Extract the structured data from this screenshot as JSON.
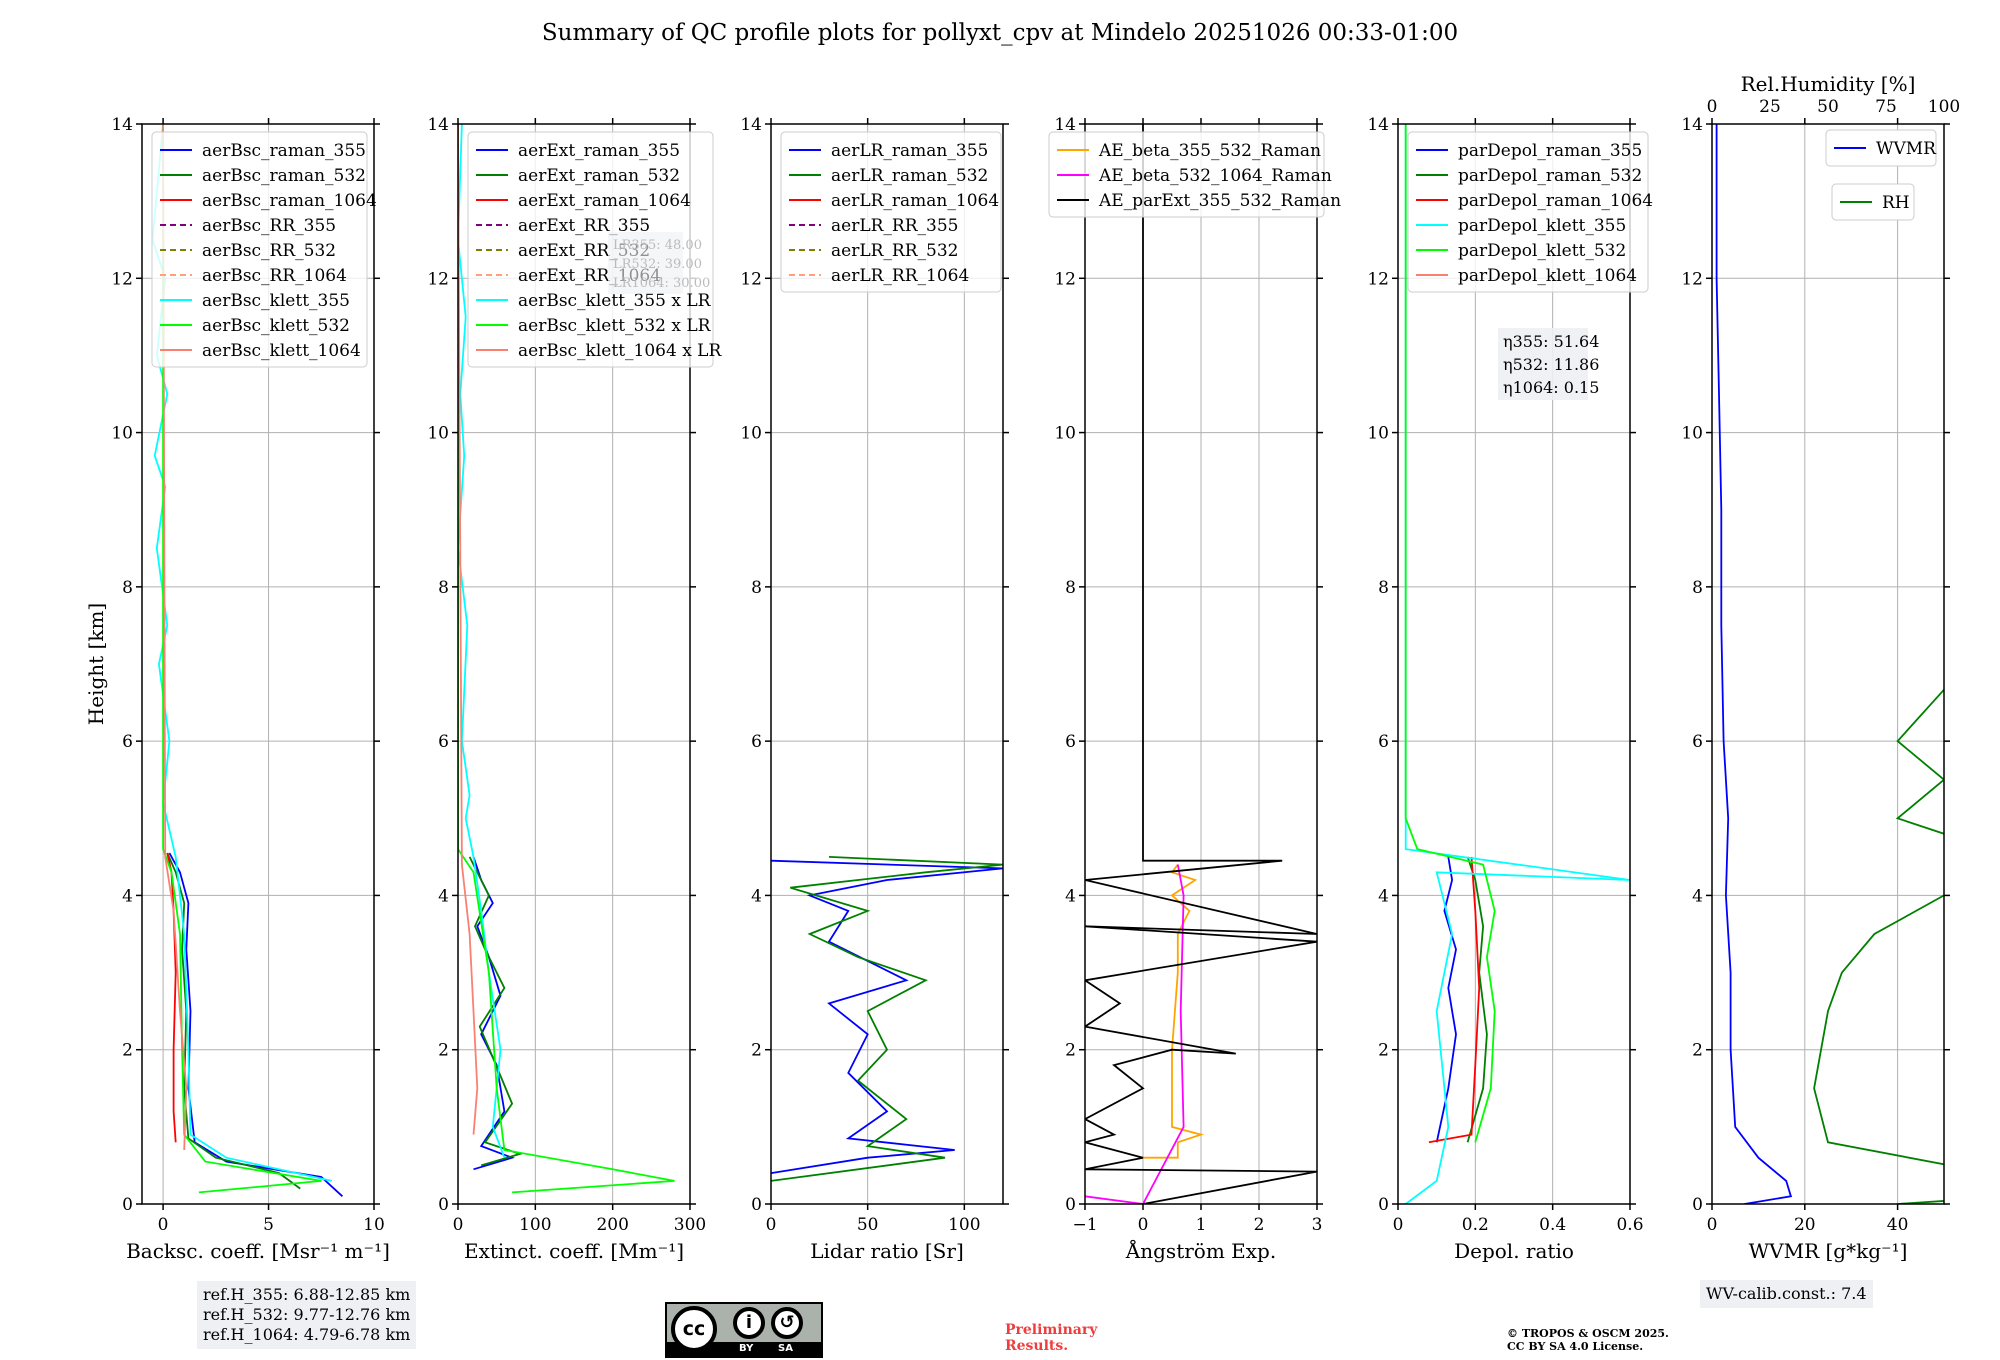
{
  "figure": {
    "title": "Summary of QC profile plots for pollyxt_cpv at Mindelo 20251026 00:33-01:00",
    "ylabel": "Height [km]"
  },
  "chart_data": [
    {
      "type": "line",
      "name": "backscatter",
      "xlabel": "Backsc. coeff. [Msr⁻¹ m⁻¹]",
      "ylabel": "Height [km]",
      "xlim": [
        -1,
        10
      ],
      "ylim": [
        0,
        14
      ],
      "xticks": [
        0,
        5,
        10
      ],
      "yticks": [
        0,
        2,
        4,
        6,
        8,
        10,
        12,
        14
      ],
      "grid": true,
      "legend_position": "top-left",
      "series": [
        {
          "name": "aerBsc_raman_355",
          "color": "#0000ff",
          "style": "solid",
          "x": [
            8.5,
            7.5,
            3.0,
            1.5,
            1.2,
            1.3,
            1.1,
            1.2,
            0.8,
            0.3
          ],
          "y": [
            0.1,
            0.35,
            0.55,
            0.8,
            1.5,
            2.5,
            3.3,
            3.9,
            4.3,
            4.55
          ]
        },
        {
          "name": "aerBsc_raman_532",
          "color": "#008000",
          "style": "solid",
          "x": [
            6.5,
            5.5,
            2.5,
            1.2,
            1.0,
            1.1,
            0.9,
            1.0,
            0.6,
            0.2
          ],
          "y": [
            0.2,
            0.4,
            0.6,
            0.85,
            1.5,
            2.5,
            3.3,
            3.9,
            4.3,
            4.55
          ]
        },
        {
          "name": "aerBsc_raman_1064",
          "color": "#ff0000",
          "style": "solid",
          "x": [
            0.6,
            0.5,
            0.5,
            0.6,
            0.5,
            0.4,
            0.2
          ],
          "y": [
            0.8,
            1.2,
            2.0,
            3.0,
            3.8,
            4.3,
            4.55
          ]
        },
        {
          "name": "aerBsc_RR_355",
          "color": "#800080",
          "style": "dashed",
          "x": [],
          "y": []
        },
        {
          "name": "aerBsc_RR_532",
          "color": "#808000",
          "style": "dashed",
          "x": [],
          "y": []
        },
        {
          "name": "aerBsc_RR_1064",
          "color": "#ffa07a",
          "style": "dashed",
          "x": [],
          "y": []
        },
        {
          "name": "aerBsc_klett_355",
          "color": "#00ffff",
          "style": "solid",
          "x": [
            8.0,
            3.0,
            1.3,
            1.2,
            1.0,
            0.6,
            0.0,
            0.3,
            -0.2,
            0.2,
            -0.3,
            0.1,
            -0.4,
            0.2,
            -0.3,
            0.1,
            -0.5,
            0.0
          ],
          "y": [
            0.3,
            0.6,
            0.9,
            2.0,
            3.5,
            4.5,
            5.2,
            6.0,
            7.0,
            7.5,
            8.5,
            9.3,
            9.7,
            10.5,
            11.0,
            12.0,
            12.5,
            14.0
          ]
        },
        {
          "name": "aerBsc_klett_532",
          "color": "#00ff00",
          "style": "solid",
          "x": [
            1.7,
            7.5,
            2.0,
            1.0,
            0.9,
            0.8,
            0.4,
            0.0,
            0.0
          ],
          "y": [
            0.15,
            0.3,
            0.55,
            0.9,
            2.0,
            3.5,
            4.3,
            4.6,
            14.0
          ]
        },
        {
          "name": "aerBsc_klett_1064",
          "color": "#fa8072",
          "style": "solid",
          "x": [
            1.0,
            1.1,
            0.8,
            0.5,
            0.1,
            0.0
          ],
          "y": [
            0.7,
            1.5,
            2.5,
            3.8,
            4.5,
            14.0
          ]
        }
      ]
    },
    {
      "type": "line",
      "name": "extinction",
      "xlabel": "Extinct. coeff. [Mm⁻¹]",
      "xlim": [
        0,
        300
      ],
      "ylim": [
        0,
        14
      ],
      "xticks": [
        0,
        100,
        200,
        300
      ],
      "grid": true,
      "legend_position": "top-left",
      "annotation": [
        "LR355: 48.00",
        "LR532: 39.00",
        "LR1064: 30.00"
      ],
      "series": [
        {
          "name": "aerExt_raman_355",
          "color": "#0000ff",
          "style": "solid",
          "x": [
            20,
            70,
            30,
            60,
            50,
            30,
            55,
            40,
            25,
            45,
            30,
            20
          ],
          "y": [
            0.45,
            0.6,
            0.75,
            1.2,
            1.8,
            2.2,
            2.7,
            3.2,
            3.6,
            3.9,
            4.2,
            4.5
          ]
        },
        {
          "name": "aerExt_raman_532",
          "color": "#008000",
          "style": "solid",
          "x": [
            30,
            80,
            35,
            70,
            45,
            28,
            60,
            35,
            22,
            40,
            25,
            15
          ],
          "y": [
            0.5,
            0.65,
            0.8,
            1.3,
            1.9,
            2.3,
            2.8,
            3.3,
            3.6,
            4.0,
            4.3,
            4.5
          ]
        },
        {
          "name": "aerExt_raman_1064",
          "color": "#ff0000",
          "style": "solid",
          "x": [],
          "y": []
        },
        {
          "name": "aerExt_RR_355",
          "color": "#800080",
          "style": "dashed",
          "x": [],
          "y": []
        },
        {
          "name": "aerExt_RR_532",
          "color": "#808000",
          "style": "dashed",
          "x": [],
          "y": []
        },
        {
          "name": "aerExt_RR_1064",
          "color": "#ffa07a",
          "style": "dashed",
          "x": [],
          "y": []
        },
        {
          "name": "aerBsc_klett_355 x LR",
          "color": "#00ffff",
          "style": "solid",
          "x": [
            60,
            45,
            55,
            40,
            30,
            20,
            10,
            15,
            5,
            12,
            0,
            8,
            3,
            10,
            0,
            5
          ],
          "y": [
            0.6,
            1.0,
            2.0,
            3.0,
            3.8,
            4.5,
            5.0,
            5.3,
            6.0,
            7.5,
            8.5,
            9.7,
            10.5,
            11.5,
            12.5,
            14.0
          ]
        },
        {
          "name": "aerBsc_klett_532 x LR",
          "color": "#00ff00",
          "style": "solid",
          "x": [
            70,
            280,
            200,
            60,
            50,
            40,
            20,
            0,
            0
          ],
          "y": [
            0.15,
            0.3,
            0.45,
            0.7,
            1.5,
            3.0,
            4.3,
            4.6,
            14.0
          ]
        },
        {
          "name": "aerBsc_klett_1064 x LR",
          "color": "#fa8072",
          "style": "solid",
          "x": [
            20,
            25,
            20,
            15,
            5,
            0
          ],
          "y": [
            0.9,
            1.5,
            2.5,
            3.5,
            4.4,
            14.0
          ]
        }
      ]
    },
    {
      "type": "line",
      "name": "lidar_ratio",
      "xlabel": "Lidar ratio [Sr]",
      "xlim": [
        0,
        120
      ],
      "ylim": [
        0,
        14
      ],
      "xticks": [
        0,
        50,
        100
      ],
      "grid": true,
      "legend_position": "top-left",
      "series": [
        {
          "name": "aerLR_raman_355",
          "color": "#0000ff",
          "style": "solid",
          "x": [
            0,
            50,
            95,
            40,
            60,
            40,
            50,
            30,
            70,
            30,
            40,
            20,
            60,
            120,
            0
          ],
          "y": [
            0.4,
            0.6,
            0.7,
            0.85,
            1.2,
            1.7,
            2.2,
            2.6,
            2.9,
            3.4,
            3.8,
            4.0,
            4.2,
            4.35,
            4.45
          ]
        },
        {
          "name": "aerLR_raman_532",
          "color": "#008000",
          "style": "solid",
          "x": [
            0,
            90,
            50,
            70,
            45,
            60,
            50,
            80,
            45,
            20,
            50,
            10,
            80,
            120,
            30
          ],
          "y": [
            0.3,
            0.6,
            0.75,
            1.1,
            1.6,
            2.0,
            2.5,
            2.9,
            3.2,
            3.5,
            3.8,
            4.1,
            4.3,
            4.4,
            4.5
          ]
        },
        {
          "name": "aerLR_raman_1064",
          "color": "#ff0000",
          "style": "solid",
          "x": [],
          "y": []
        },
        {
          "name": "aerLR_RR_355",
          "color": "#800080",
          "style": "dashed",
          "x": [],
          "y": []
        },
        {
          "name": "aerLR_RR_532",
          "color": "#808000",
          "style": "dashed",
          "x": [],
          "y": []
        },
        {
          "name": "aerLR_RR_1064",
          "color": "#ffa07a",
          "style": "dashed",
          "x": [],
          "y": []
        }
      ]
    },
    {
      "type": "line",
      "name": "angstrom",
      "xlabel": "Ångström Exp.",
      "xlim": [
        -1,
        3
      ],
      "ylim": [
        0,
        14
      ],
      "xticks": [
        -1,
        0,
        1,
        2,
        3
      ],
      "grid": true,
      "legend_position": "top-center",
      "series": [
        {
          "name": "AE_beta_355_532_Raman",
          "color": "#ffa500",
          "style": "solid",
          "x": [
            0.0,
            0.6,
            0.6,
            1.0,
            0.5,
            0.5,
            0.6,
            0.6,
            0.8,
            0.5,
            0.9,
            0.5,
            0.6
          ],
          "y": [
            0.6,
            0.6,
            0.8,
            0.9,
            1.0,
            2.0,
            3.0,
            3.5,
            3.8,
            4.0,
            4.2,
            4.3,
            4.4
          ]
        },
        {
          "name": "AE_beta_532_1064_Raman",
          "color": "#ff00ff",
          "style": "solid",
          "x": [
            -1.0,
            0.0,
            0.7,
            0.65,
            0.7,
            0.6
          ],
          "y": [
            0.1,
            0.0,
            1.0,
            2.5,
            4.0,
            4.4
          ]
        },
        {
          "name": "AE_parExt_355_532_Raman",
          "color": "#000000",
          "style": "solid",
          "x": [
            0.0,
            3.0,
            -1.0,
            0.0,
            -1.0,
            -0.5,
            -1.0,
            0.0,
            -0.5,
            0.5,
            1.6,
            -1.0,
            -0.4,
            -1.0,
            3.0,
            -1.0,
            3.0,
            -1.0,
            2.4,
            0.0,
            0.0
          ],
          "y": [
            0.0,
            0.42,
            0.45,
            0.6,
            0.8,
            0.9,
            1.1,
            1.5,
            1.8,
            2.0,
            1.95,
            2.3,
            2.6,
            2.9,
            3.4,
            3.6,
            3.5,
            4.2,
            4.45,
            4.45,
            14.0
          ]
        }
      ]
    },
    {
      "type": "line",
      "name": "depol",
      "xlabel": "Depol. ratio",
      "xlim": [
        0,
        0.6
      ],
      "ylim": [
        0,
        14
      ],
      "xticks": [
        0.0,
        0.2,
        0.4,
        0.6
      ],
      "grid": true,
      "legend_position": "top-left",
      "annotation": [
        "η355: 51.64",
        "η532: 11.86",
        "η1064: 0.15"
      ],
      "series": [
        {
          "name": "parDepol_raman_355",
          "color": "#0000ff",
          "style": "solid",
          "x": [
            0.1,
            0.13,
            0.15,
            0.13,
            0.15,
            0.12,
            0.14,
            0.13
          ],
          "y": [
            0.8,
            1.5,
            2.2,
            2.8,
            3.3,
            3.8,
            4.2,
            4.5
          ]
        },
        {
          "name": "parDepol_raman_532",
          "color": "#008000",
          "style": "solid",
          "x": [
            0.18,
            0.22,
            0.23,
            0.21,
            0.22,
            0.2,
            0.18
          ],
          "y": [
            0.8,
            1.5,
            2.2,
            3.0,
            3.6,
            4.2,
            4.5
          ]
        },
        {
          "name": "parDepol_raman_1064",
          "color": "#ff0000",
          "style": "solid",
          "x": [
            0.08,
            0.19,
            0.2,
            0.21,
            0.2,
            0.19
          ],
          "y": [
            0.8,
            0.9,
            1.8,
            2.8,
            3.8,
            4.5
          ]
        },
        {
          "name": "parDepol_klett_355",
          "color": "#00ffff",
          "style": "solid",
          "x": [
            0.02,
            0.1,
            0.13,
            0.1,
            0.14,
            0.1,
            0.6,
            0.02,
            0.02
          ],
          "y": [
            0.0,
            0.3,
            1.0,
            2.5,
            3.5,
            4.3,
            4.2,
            4.6,
            14.0
          ]
        },
        {
          "name": "parDepol_klett_532",
          "color": "#00ff00",
          "style": "solid",
          "x": [
            0.2,
            0.24,
            0.25,
            0.23,
            0.25,
            0.22,
            0.05,
            0.02,
            0.02
          ],
          "y": [
            0.8,
            1.5,
            2.5,
            3.2,
            3.8,
            4.4,
            4.6,
            5.0,
            14.0
          ]
        },
        {
          "name": "parDepol_klett_1064",
          "color": "#fa8072",
          "style": "solid",
          "x": [],
          "y": []
        }
      ]
    },
    {
      "type": "line",
      "name": "wvmr",
      "xlabel": "WVMR [g*kg⁻¹]",
      "xlim": [
        0,
        50
      ],
      "ylim": [
        0,
        14
      ],
      "xticks": [
        0,
        20,
        40
      ],
      "top_axis": {
        "label": "Rel.Humidity [%]",
        "lim": [
          0,
          100
        ],
        "ticks": [
          0,
          25,
          50,
          75,
          100
        ]
      },
      "grid": true,
      "legend_position": "top-right",
      "annotation": "WV-calib.const.: 7.4",
      "series": [
        {
          "name": "WVMR",
          "color": "#0000ff",
          "style": "solid",
          "x": [
            7,
            17,
            16,
            10,
            5,
            4,
            4,
            3,
            3.5,
            2.5,
            2,
            2,
            1.5,
            1,
            1
          ],
          "y": [
            0.0,
            0.1,
            0.3,
            0.6,
            1.0,
            2.0,
            3.0,
            4.0,
            5.0,
            6.0,
            7.5,
            9.0,
            10.5,
            12.0,
            14.0
          ]
        },
        {
          "name": "RH",
          "color": "#008000",
          "style": "solid",
          "x": [
            40,
            90,
            60,
            25,
            22,
            25,
            28,
            35,
            50,
            65,
            40,
            50,
            40,
            55,
            75,
            60,
            90,
            75,
            95,
            60
          ],
          "y": [
            0.0,
            0.2,
            0.4,
            0.8,
            1.5,
            2.5,
            3.0,
            3.5,
            4.0,
            4.5,
            5.0,
            5.5,
            6.0,
            7.0,
            7.5,
            8.0,
            8.5,
            9.0,
            10.0,
            10.7
          ]
        }
      ]
    }
  ],
  "footer": {
    "ref_heights": [
      "ref.H_355: 6.88-12.85 km",
      "ref.H_532: 9.77-12.76 km",
      "ref.H_1064: 4.79-6.78 km"
    ],
    "license_badge": {
      "text": "cc",
      "by": "BY",
      "sa": "SA"
    },
    "preliminary": [
      "Preliminary",
      "Results."
    ],
    "copyright": [
      "© TROPOS & OSCM 2025.",
      "CC BY SA 4.0 License."
    ]
  }
}
